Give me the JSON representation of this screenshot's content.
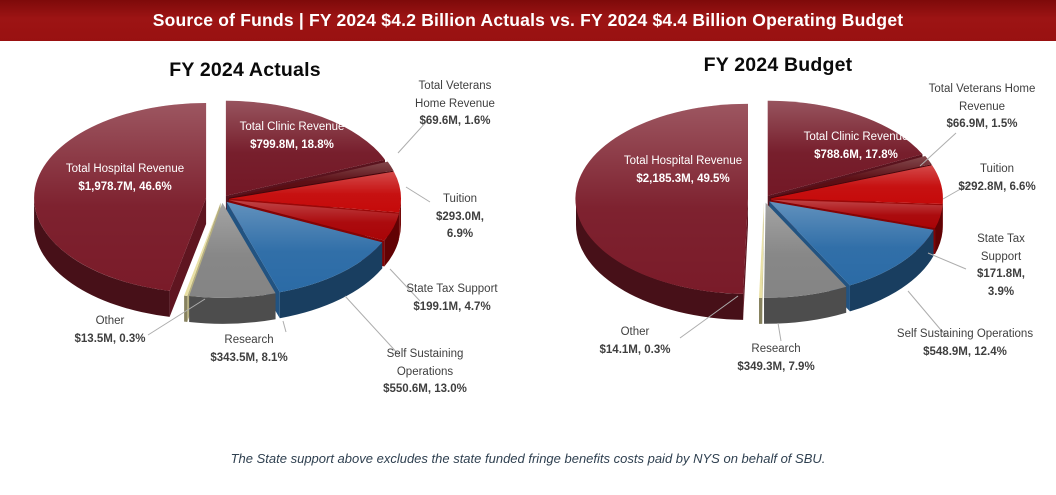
{
  "header": {
    "title": "Source of Funds | FY 2024 $4.2 Billion Actuals vs. FY 2024 $4.4 Billion Operating Budget",
    "background_color": "#9B1212",
    "text_color": "#FFFFFF"
  },
  "footer": {
    "note": "The State support above excludes the state funded fringe benefits costs paid by NYS on behalf of SBU."
  },
  "chart_data": [
    {
      "type": "pie",
      "style": "3d-exploded",
      "title": "FY 2024 Actuals",
      "total": "$4.2 Billion",
      "units": "millions USD",
      "start_angle_deg": 0,
      "direction": "clockwise",
      "slices": [
        {
          "key": "clinic",
          "label": "Total Clinic Revenue",
          "value_m": 799.8,
          "pct": 18.8,
          "value_label": "$799.8M, 18.8%",
          "color": "#731826",
          "label_inside": true
        },
        {
          "key": "veterans",
          "label": "Total Veterans Home Revenue",
          "value_m": 69.6,
          "pct": 1.6,
          "value_label": "$69.6M, 1.6%",
          "color": "#58090F"
        },
        {
          "key": "tuition",
          "label": "Tuition",
          "value_m": 293.0,
          "pct": 6.9,
          "value_label": "$293.0M, 6.9%",
          "color": "#C50A0A"
        },
        {
          "key": "statetax",
          "label": "State Tax Support",
          "value_m": 199.1,
          "pct": 4.7,
          "value_label": "$199.1M, 4.7%",
          "color": "#A90407"
        },
        {
          "key": "selfsust",
          "label": "Self Sustaining Operations",
          "value_m": 550.6,
          "pct": 13.0,
          "value_label": "$550.6M, 13.0%",
          "color": "#2B6BA6"
        },
        {
          "key": "research",
          "label": "Research",
          "value_m": 343.5,
          "pct": 8.1,
          "value_label": "$343.5M, 8.1%",
          "color": "#848484"
        },
        {
          "key": "other",
          "label": "Other",
          "value_m": 13.5,
          "pct": 0.3,
          "value_label": "$13.5M, 0.3%",
          "color": "#E9E0A3"
        },
        {
          "key": "hospital",
          "label": "Total Hospital Revenue",
          "value_m": 1978.7,
          "pct": 46.6,
          "value_label": "$1,978.7M, 46.6%",
          "color": "#7A1B29",
          "label_inside": true
        }
      ]
    },
    {
      "type": "pie",
      "style": "3d-exploded",
      "title": "FY 2024 Budget",
      "total": "$4.4 Billion",
      "units": "millions USD",
      "start_angle_deg": 0,
      "direction": "clockwise",
      "slices": [
        {
          "key": "clinic",
          "label": "Total Clinic Revenue",
          "value_m": 788.6,
          "pct": 17.8,
          "value_label": "$788.6M, 17.8%",
          "color": "#731826",
          "label_inside": true
        },
        {
          "key": "veterans",
          "label": "Total Veterans Home Revenue",
          "value_m": 66.9,
          "pct": 1.5,
          "value_label": "$66.9M, 1.5%",
          "color": "#58090F"
        },
        {
          "key": "tuition",
          "label": "Tuition",
          "value_m": 292.8,
          "pct": 6.6,
          "value_label": "$292.8M, 6.6%",
          "color": "#C50A0A"
        },
        {
          "key": "statetax",
          "label": "State Tax Support",
          "value_m": 171.8,
          "pct": 3.9,
          "value_label": "$171.8M, 3.9%",
          "color": "#A90407"
        },
        {
          "key": "selfsust",
          "label": "Self Sustaining Operations",
          "value_m": 548.9,
          "pct": 12.4,
          "value_label": "$548.9M, 12.4%",
          "color": "#2B6BA6"
        },
        {
          "key": "research",
          "label": "Research",
          "value_m": 349.3,
          "pct": 7.9,
          "value_label": "$349.3M, 7.9%",
          "color": "#848484"
        },
        {
          "key": "other",
          "label": "Other",
          "value_m": 14.1,
          "pct": 0.3,
          "value_label": "$14.1M, 0.3%",
          "color": "#E9E0A3"
        },
        {
          "key": "hospital",
          "label": "Total Hospital Revenue",
          "value_m": 2185.3,
          "pct": 49.5,
          "value_label": "$2,185.3M, 49.5%",
          "color": "#7A1B29",
          "label_inside": true
        }
      ]
    }
  ]
}
